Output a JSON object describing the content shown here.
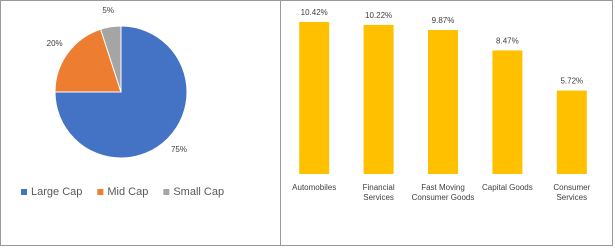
{
  "chart_data": [
    {
      "type": "pie",
      "categories": [
        "Large Cap",
        "Mid Cap",
        "Small Cap"
      ],
      "values": [
        75,
        20,
        5
      ],
      "value_labels": [
        "75%",
        "20%",
        "5%"
      ],
      "colors": [
        "#4472c4",
        "#ed7d31",
        "#a5a5a5"
      ],
      "legend": "bottom"
    },
    {
      "type": "bar",
      "categories": [
        "Automobiles",
        "Financial Services",
        "Fast Moving Consumer Goods",
        "Capital Goods",
        "Consumer Services"
      ],
      "values": [
        10.42,
        10.22,
        9.87,
        8.47,
        5.72
      ],
      "value_labels": [
        "10.42%",
        "10.22%",
        "9.87%",
        "8.47%",
        "5.72%"
      ],
      "color": "#ffc000"
    }
  ]
}
